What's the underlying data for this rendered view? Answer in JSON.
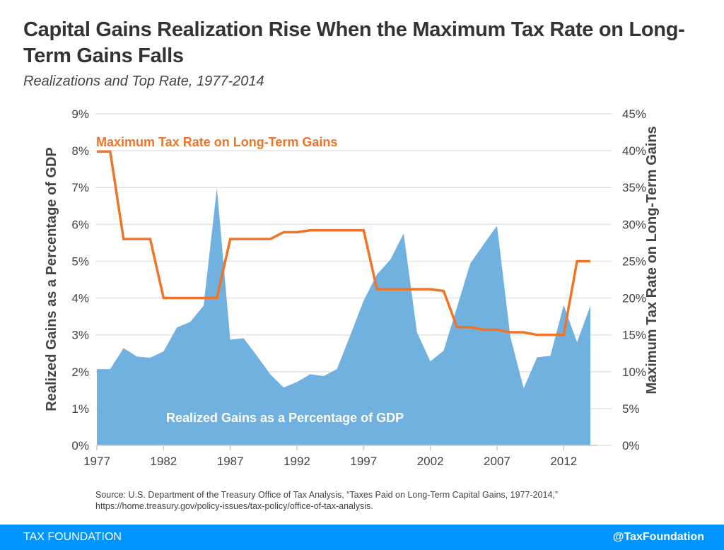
{
  "header": {
    "title": "Capital Gains Realization Rise When the Maximum Tax Rate on Long-Term Gains Falls",
    "subtitle": "Realizations and Top Rate, 1977-2014"
  },
  "chart_data": {
    "type": "area+line",
    "title": "Capital Gains Realization Rise When the Maximum Tax Rate on Long-Term Gains Falls",
    "subtitle": "Realizations and Top Rate, 1977-2014",
    "x": [
      1977,
      1978,
      1979,
      1980,
      1981,
      1982,
      1983,
      1984,
      1985,
      1986,
      1987,
      1988,
      1989,
      1990,
      1991,
      1992,
      1993,
      1994,
      1995,
      1996,
      1997,
      1998,
      1999,
      2000,
      2001,
      2002,
      2003,
      2004,
      2005,
      2006,
      2007,
      2008,
      2009,
      2010,
      2011,
      2012,
      2013,
      2014
    ],
    "xticks": [
      "1977",
      "1982",
      "1987",
      "1992",
      "1997",
      "2002",
      "2007",
      "2012"
    ],
    "ylabel_left": "Realized Gains as a Percentage of GDP",
    "ylabel_right": "Maximum Tax Rate on Long-Term Gains",
    "ylim_left": [
      0,
      9
    ],
    "ylim_right": [
      0,
      45
    ],
    "yticks_left": [
      "0%",
      "1%",
      "2%",
      "3%",
      "4%",
      "5%",
      "6%",
      "7%",
      "8%",
      "9%"
    ],
    "yticks_right": [
      "0%",
      "5%",
      "10%",
      "15%",
      "20%",
      "25%",
      "30%",
      "35%",
      "40%",
      "45%"
    ],
    "grid": true,
    "series": [
      {
        "name": "Realized Gains as a Percentage of GDP",
        "type": "area",
        "axis": "left",
        "color": "#70b1e0",
        "values": [
          2.07,
          2.07,
          2.64,
          2.41,
          2.38,
          2.55,
          3.2,
          3.35,
          3.79,
          6.99,
          2.87,
          2.91,
          2.43,
          1.93,
          1.57,
          1.72,
          1.93,
          1.88,
          2.07,
          2.99,
          3.93,
          4.64,
          5.04,
          5.75,
          3.07,
          2.28,
          2.57,
          3.75,
          4.94,
          5.46,
          5.96,
          2.95,
          1.55,
          2.39,
          2.43,
          3.81,
          2.8,
          3.79
        ]
      },
      {
        "name": "Maximum Tax Rate on Long-Term Gains",
        "type": "line",
        "axis": "right",
        "color": "#f07427",
        "values": [
          39.875,
          39.875,
          28,
          28,
          28,
          20,
          20,
          20,
          20,
          20,
          28,
          28,
          28,
          28,
          28.93,
          28.93,
          29.19,
          29.19,
          29.19,
          29.19,
          29.19,
          21.19,
          21.19,
          21.19,
          21.19,
          21.19,
          20.95,
          16.05,
          16.05,
          15.7,
          15.7,
          15.35,
          15.35,
          15,
          15,
          15,
          25,
          25
        ]
      }
    ]
  },
  "source": {
    "line1": "Source: U.S. Department of the Treasury Office of Tax Analysis, “Taxes Paid on Long-Term Capital Gains, 1977-2014,”",
    "line2": "https://home.treasury.gov/policy-issues/tax-policy/office-of-tax-analysis."
  },
  "footer": {
    "brand": "TAX FOUNDATION",
    "handle": "@TaxFoundation"
  }
}
